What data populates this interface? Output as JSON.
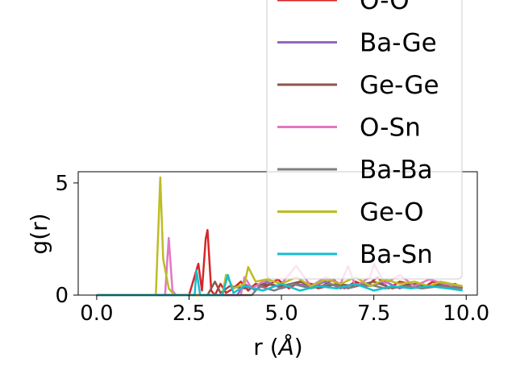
{
  "chart_data": {
    "type": "line",
    "title": "",
    "xlabel": "r ($\\AA$)",
    "ylabel": "g(r)",
    "xlim": [
      -0.5,
      10.3
    ],
    "ylim": [
      0,
      5.5
    ],
    "xticks": [
      0.0,
      2.5,
      5.0,
      7.5,
      10.0
    ],
    "xtick_labels": [
      "0.0",
      "2.5",
      "5.0",
      "7.5",
      "10.0"
    ],
    "yticks": [
      0,
      5
    ],
    "ytick_labels": [
      "0",
      "5"
    ],
    "grid": false,
    "legend_position": "upper-right (overflowing above plot)",
    "series": [
      {
        "name": "O-O",
        "color": "#d62728",
        "x": [
          0,
          2.4,
          2.5,
          2.75,
          2.85,
          2.95,
          3.0,
          3.1,
          3.2,
          3.35,
          3.5,
          3.7,
          3.9,
          4.1,
          4.3,
          4.6,
          4.9,
          5.2,
          5.5,
          5.8,
          6.1,
          6.4,
          6.7,
          7.0,
          7.3,
          7.6,
          7.9,
          8.2,
          8.5,
          8.8,
          9.1,
          9.4,
          9.7,
          9.9
        ],
        "y": [
          0,
          0,
          0,
          1.4,
          0.2,
          2.5,
          2.9,
          0.2,
          0,
          0.5,
          0.1,
          0.3,
          0.6,
          0.2,
          0.5,
          0.4,
          0.7,
          0.3,
          0.6,
          0.5,
          0.4,
          0.7,
          0.3,
          0.6,
          0.4,
          0.8,
          0.3,
          0.6,
          0.5,
          0.3,
          0.6,
          0.4,
          0.5,
          0.3
        ]
      },
      {
        "name": "Ba-Ge",
        "color": "#9467bd",
        "x": [
          0,
          3.8,
          4.0,
          4.3,
          4.6,
          5.0,
          5.4,
          5.8,
          6.2,
          6.6,
          7.0,
          7.4,
          7.8,
          8.2,
          8.6,
          9.0,
          9.4,
          9.9
        ],
        "y": [
          0,
          0,
          0.5,
          0.2,
          0.6,
          0.3,
          0.5,
          0.4,
          0.6,
          0.3,
          0.5,
          0.4,
          0.6,
          0.3,
          0.5,
          0.4,
          0.5,
          0.4
        ]
      },
      {
        "name": "Ge-Ge",
        "color": "#8c564b",
        "x": [
          0,
          3.0,
          3.2,
          3.35,
          3.6,
          4.0,
          4.5,
          5.0,
          5.5,
          6.0,
          6.5,
          7.0,
          7.5,
          8.0,
          8.5,
          9.0,
          9.5,
          9.9
        ],
        "y": [
          0,
          0,
          0.6,
          0.1,
          0.4,
          0.3,
          0.5,
          0.4,
          0.6,
          0.3,
          0.5,
          0.4,
          0.6,
          0.3,
          0.5,
          0.4,
          0.5,
          0.3
        ]
      },
      {
        "name": "O-Sn",
        "color": "#e377c2",
        "x": [
          0,
          1.85,
          1.95,
          2.05,
          2.15,
          3.9,
          4.0,
          4.2,
          4.6,
          5.0,
          5.4,
          5.8,
          6.2,
          6.6,
          6.8,
          7.0,
          7.4,
          7.5,
          7.8,
          8.2,
          8.6,
          9.0,
          9.4,
          9.9
        ],
        "y": [
          0,
          0,
          2.55,
          0.2,
          0,
          0,
          0.8,
          0.3,
          0.7,
          0.5,
          1.3,
          0.4,
          0.8,
          0.5,
          1.3,
          0.4,
          0.8,
          1.4,
          0.5,
          0.9,
          0.4,
          0.7,
          0.5,
          0.4
        ]
      },
      {
        "name": "Ba-Ba",
        "color": "#7f7f7f",
        "x": [
          0,
          4.2,
          4.4,
          4.8,
          5.3,
          5.8,
          6.3,
          6.8,
          7.3,
          7.8,
          8.3,
          8.8,
          9.3,
          9.9
        ],
        "y": [
          0,
          0,
          0.4,
          0.2,
          0.5,
          0.3,
          0.5,
          0.3,
          0.5,
          0.3,
          0.4,
          0.3,
          0.4,
          0.3
        ]
      },
      {
        "name": "Ge-O",
        "color": "#bcbd22",
        "x": [
          0,
          1.6,
          1.72,
          1.8,
          1.95,
          2.1,
          3.4,
          3.5,
          3.7,
          4.0,
          4.1,
          4.3,
          4.6,
          5.0,
          5.4,
          5.8,
          6.2,
          6.6,
          7.0,
          7.4,
          7.8,
          8.2,
          8.6,
          9.0,
          9.3,
          9.6,
          9.9
        ],
        "y": [
          0,
          0,
          5.25,
          1.6,
          0.3,
          0,
          0,
          0.9,
          0.3,
          0.5,
          1.25,
          0.6,
          0.7,
          0.5,
          0.8,
          0.4,
          0.7,
          0.5,
          0.8,
          0.4,
          0.7,
          0.5,
          0.6,
          0.4,
          0.6,
          0.5,
          0.4
        ]
      },
      {
        "name": "Ba-Sn",
        "color": "#17becf",
        "x": [
          0,
          2.65,
          2.7,
          2.8,
          3.4,
          3.55,
          3.7,
          4.0,
          4.5,
          5.0,
          5.5,
          6.0,
          6.5,
          7.0,
          7.5,
          8.0,
          8.5,
          9.0,
          9.5,
          9.9
        ],
        "y": [
          0,
          0,
          1.1,
          0,
          0,
          0.9,
          0.1,
          0.4,
          0.2,
          0.5,
          0.2,
          0.4,
          0.3,
          0.5,
          0.2,
          0.4,
          0.3,
          0.4,
          0.3,
          0.2
        ]
      }
    ]
  }
}
